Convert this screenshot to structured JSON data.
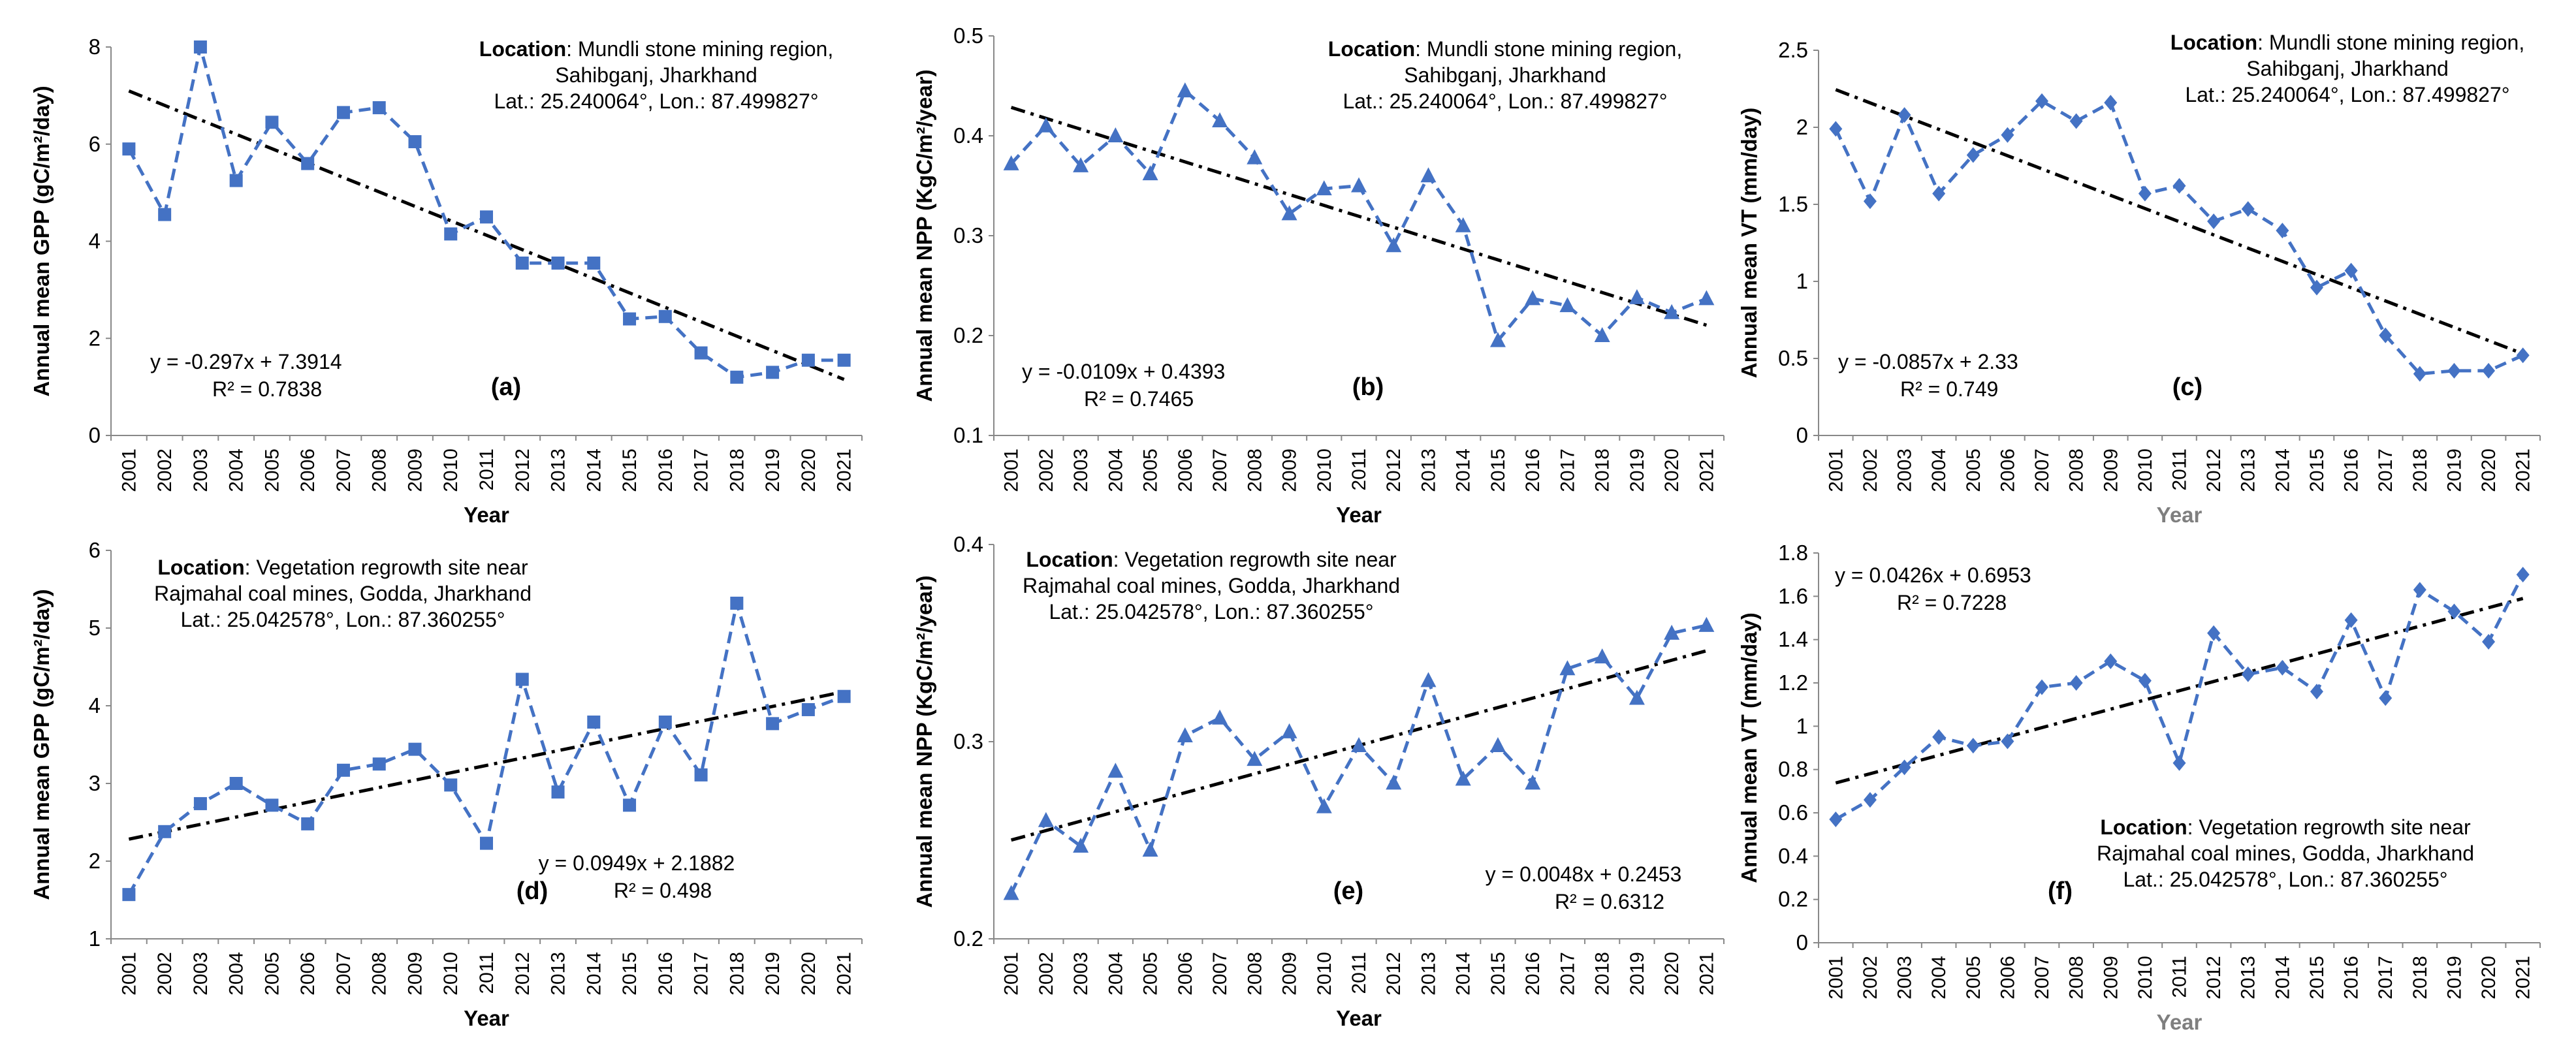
{
  "chart_data": [
    {
      "type": "line",
      "panel": "(a)",
      "ylabel": "Annual mean GPP (gC/m²/day)",
      "xlabel": "Year",
      "ylim": [
        0,
        8
      ],
      "yticks": [
        "0",
        "2",
        "4",
        "6",
        "8"
      ],
      "categories": [
        "2001",
        "2002",
        "2003",
        "2004",
        "2005",
        "2006",
        "2007",
        "2008",
        "2009",
        "2010",
        "2011",
        "2012",
        "2013",
        "2014",
        "2015",
        "2016",
        "2017",
        "2018",
        "2019",
        "2020",
        "2021"
      ],
      "values": [
        5.9,
        4.55,
        8.0,
        5.25,
        6.45,
        5.6,
        6.65,
        6.75,
        6.05,
        4.15,
        4.5,
        3.55,
        3.55,
        3.55,
        2.4,
        2.45,
        1.7,
        1.2,
        1.3,
        1.55,
        1.55
      ],
      "marker": "square",
      "trend": {
        "slope": -0.297,
        "intercept": 7.3914
      },
      "equation": "y = -0.297x + 7.3914",
      "r2": "R² = 0.7838",
      "location_label": "Location",
      "location_lines": [
        ": Mundli stone mining region,",
        "Sahibganj, Jharkhand",
        "Lat.:  25.240064°, Lon.:  87.499827°"
      ]
    },
    {
      "type": "line",
      "panel": "(b)",
      "ylabel": "Annual mean NPP (KgC/m²/year)",
      "xlabel": "Year",
      "ylim": [
        0.1,
        0.5
      ],
      "yticks": [
        "0.1",
        "0.2",
        "0.3",
        "0.4",
        "0.5"
      ],
      "categories": [
        "2001",
        "2002",
        "2003",
        "2004",
        "2005",
        "2006",
        "2007",
        "2008",
        "2009",
        "2010",
        "2011",
        "2012",
        "2013",
        "2014",
        "2015",
        "2016",
        "2017",
        "2018",
        "2019",
        "2020",
        "2021"
      ],
      "values": [
        0.372,
        0.41,
        0.37,
        0.4,
        0.362,
        0.445,
        0.415,
        0.378,
        0.322,
        0.347,
        0.35,
        0.29,
        0.36,
        0.31,
        0.195,
        0.237,
        0.23,
        0.2,
        0.238,
        0.223,
        0.237
      ],
      "marker": "triangle",
      "trend": {
        "slope": -0.0109,
        "intercept": 0.4393
      },
      "equation": "y = -0.0109x + 0.4393",
      "r2": "R² = 0.7465",
      "location_label": "Location",
      "location_lines": [
        ": Mundli stone mining region,",
        "Sahibganj, Jharkhand",
        "Lat.:  25.240064°, Lon.:  87.499827°"
      ]
    },
    {
      "type": "line",
      "panel": "(c)",
      "ylabel": "Annual mean VT (mm/day)",
      "xlabel": "Year",
      "ylim": [
        0,
        2.5
      ],
      "yticks": [
        "0",
        "0.5",
        "1",
        "1.5",
        "2",
        "2.5"
      ],
      "categories": [
        "2001",
        "2002",
        "2003",
        "2004",
        "2005",
        "2006",
        "2007",
        "2008",
        "2009",
        "2010",
        "2011",
        "2012",
        "2013",
        "2014",
        "2015",
        "2016",
        "2017",
        "2018",
        "2019",
        "2020",
        "2021"
      ],
      "values": [
        1.99,
        1.52,
        2.08,
        1.57,
        1.82,
        1.95,
        2.17,
        2.04,
        2.16,
        1.57,
        1.62,
        1.39,
        1.47,
        1.33,
        0.96,
        1.07,
        0.65,
        0.4,
        0.42,
        0.42,
        0.52
      ],
      "marker": "diamond",
      "trend": {
        "slope": -0.0857,
        "intercept": 2.33
      },
      "equation": "y = -0.0857x + 2.33",
      "r2": "R² = 0.749",
      "location_label": "Location",
      "location_lines": [
        ": Mundli stone mining region,",
        "Sahibganj, Jharkhand",
        "Lat.:  25.240064°, Lon.:  87.499827°"
      ]
    },
    {
      "type": "line",
      "panel": "(d)",
      "ylabel": "Annual mean GPP (gC/m²/day)",
      "xlabel": "Year",
      "ylim": [
        1,
        6
      ],
      "yticks": [
        "1",
        "2",
        "3",
        "4",
        "5",
        "6"
      ],
      "categories": [
        "2001",
        "2002",
        "2003",
        "2004",
        "2005",
        "2006",
        "2007",
        "2008",
        "2009",
        "2010",
        "2011",
        "2012",
        "2013",
        "2014",
        "2015",
        "2016",
        "2017",
        "2018",
        "2019",
        "2020",
        "2021"
      ],
      "values": [
        1.57,
        2.38,
        2.74,
        3.0,
        2.72,
        2.48,
        3.17,
        3.25,
        3.44,
        2.98,
        2.23,
        4.34,
        2.89,
        3.79,
        2.72,
        3.79,
        3.11,
        5.32,
        3.77,
        3.95,
        4.12
      ],
      "marker": "square",
      "trend": {
        "slope": 0.0949,
        "intercept": 2.1882
      },
      "equation": "y = 0.0949x + 2.1882",
      "r2": "R² = 0.498",
      "location_label": "Location",
      "location_lines": [
        ": Vegetation regrowth site near",
        "Rajmahal coal mines, Godda, Jharkhand",
        "Lat.:  25.042578°, Lon.:  87.360255°"
      ]
    },
    {
      "type": "line",
      "panel": "(e)",
      "ylabel": "Annual mean NPP (KgC/m²/year)",
      "xlabel": "Year",
      "ylim": [
        0.2,
        0.4
      ],
      "yticks": [
        "0.2",
        "0.3",
        "0.4"
      ],
      "categories": [
        "2001",
        "2002",
        "2003",
        "2004",
        "2005",
        "2006",
        "2007",
        "2008",
        "2009",
        "2010",
        "2011",
        "2012",
        "2013",
        "2014",
        "2015",
        "2016",
        "2017",
        "2018",
        "2019",
        "2020",
        "2021"
      ],
      "values": [
        0.223,
        0.26,
        0.247,
        0.285,
        0.245,
        0.303,
        0.312,
        0.291,
        0.305,
        0.267,
        0.298,
        0.279,
        0.331,
        0.281,
        0.298,
        0.279,
        0.337,
        0.343,
        0.322,
        0.355,
        0.359
      ],
      "marker": "triangle",
      "trend": {
        "slope": 0.0048,
        "intercept": 0.2453
      },
      "equation": "y = 0.0048x + 0.2453",
      "r2": "R² = 0.6312",
      "location_label": "Location",
      "location_lines": [
        ": Vegetation regrowth site near",
        "Rajmahal coal mines, Godda, Jharkhand",
        "Lat.:  25.042578°, Lon.:  87.360255°"
      ]
    },
    {
      "type": "line",
      "panel": "(f)",
      "ylabel": "Annual mean VT (mm/day)",
      "xlabel": "Year",
      "ylim": [
        0,
        1.8
      ],
      "yticks": [
        "0",
        "0.2",
        "0.4",
        "0.6",
        "0.8",
        "1",
        "1.2",
        "1.4",
        "1.6",
        "1.8"
      ],
      "categories": [
        "2001",
        "2002",
        "2003",
        "2004",
        "2005",
        "2006",
        "2007",
        "2008",
        "2009",
        "2010",
        "2011",
        "2012",
        "2013",
        "2014",
        "2015",
        "2016",
        "2017",
        "2018",
        "2019",
        "2020",
        "2021"
      ],
      "values": [
        0.57,
        0.66,
        0.81,
        0.95,
        0.91,
        0.93,
        1.18,
        1.2,
        1.3,
        1.21,
        0.83,
        1.43,
        1.24,
        1.27,
        1.16,
        1.49,
        1.13,
        1.63,
        1.53,
        1.39,
        1.7
      ],
      "marker": "diamond",
      "trend": {
        "slope": 0.0426,
        "intercept": 0.6953
      },
      "equation": "y = 0.0426x + 0.6953",
      "r2": "R² = 0.7228",
      "location_label": "Location",
      "location_lines": [
        ": Vegetation regrowth site near",
        "Rajmahal coal mines, Godda, Jharkhand",
        "Lat.:  25.042578°, Lon.:  87.360255°"
      ]
    }
  ],
  "style": {
    "series_color": "#4472C4",
    "trend_color": "#000000",
    "axis_color": "#888888",
    "xlabel_color_muted": "#7F7F7F"
  }
}
